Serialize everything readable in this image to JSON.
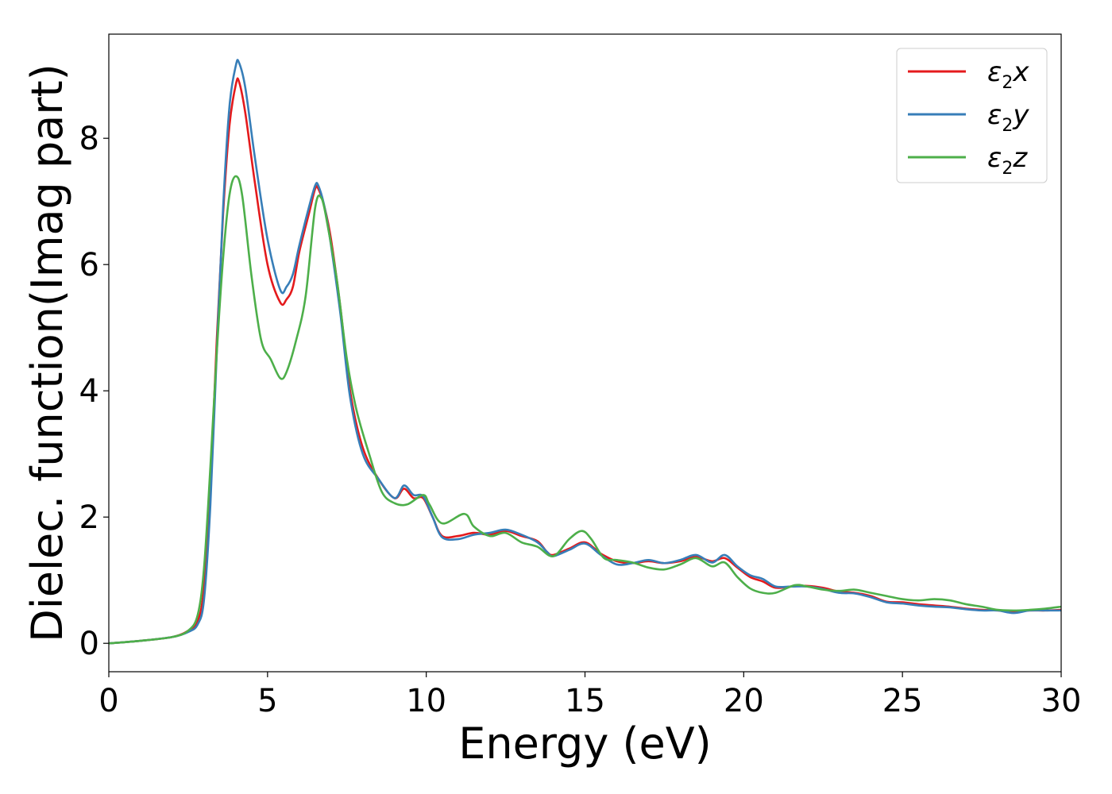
{
  "chart_data": {
    "type": "line",
    "xlabel": "Energy (eV)",
    "ylabel": "Dielec. function(Imag part)",
    "xlim": [
      0,
      30
    ],
    "ylim": [
      -0.45,
      9.65
    ],
    "xticks": [
      0,
      5,
      10,
      15,
      20,
      25,
      30
    ],
    "yticks": [
      0,
      2,
      4,
      6,
      8
    ],
    "grid": false,
    "legend_position": "top-right",
    "series": [
      {
        "name": "ε2x",
        "legend": {
          "base": "ε",
          "sub": "2",
          "var": "x"
        },
        "color": "#e41a1c",
        "points": [
          [
            0,
            0
          ],
          [
            1,
            0.04
          ],
          [
            2,
            0.1
          ],
          [
            2.5,
            0.2
          ],
          [
            2.8,
            0.35
          ],
          [
            3.0,
            0.9
          ],
          [
            3.2,
            2.5
          ],
          [
            3.4,
            4.8
          ],
          [
            3.6,
            6.8
          ],
          [
            3.8,
            8.2
          ],
          [
            4.0,
            8.85
          ],
          [
            4.1,
            8.9
          ],
          [
            4.3,
            8.4
          ],
          [
            4.6,
            7.3
          ],
          [
            5.0,
            6.0
          ],
          [
            5.4,
            5.4
          ],
          [
            5.6,
            5.45
          ],
          [
            5.8,
            5.65
          ],
          [
            6.0,
            6.2
          ],
          [
            6.3,
            6.8
          ],
          [
            6.5,
            7.2
          ],
          [
            6.6,
            7.2
          ],
          [
            6.8,
            6.9
          ],
          [
            7.0,
            6.4
          ],
          [
            7.3,
            5.3
          ],
          [
            7.6,
            4.0
          ],
          [
            8.0,
            3.1
          ],
          [
            8.5,
            2.6
          ],
          [
            9.0,
            2.3
          ],
          [
            9.3,
            2.45
          ],
          [
            9.6,
            2.3
          ],
          [
            9.9,
            2.3
          ],
          [
            10.2,
            2.0
          ],
          [
            10.5,
            1.7
          ],
          [
            11.0,
            1.7
          ],
          [
            11.5,
            1.75
          ],
          [
            12.0,
            1.72
          ],
          [
            12.5,
            1.78
          ],
          [
            13.0,
            1.7
          ],
          [
            13.5,
            1.62
          ],
          [
            13.8,
            1.45
          ],
          [
            14.0,
            1.4
          ],
          [
            14.5,
            1.5
          ],
          [
            15.0,
            1.6
          ],
          [
            15.5,
            1.42
          ],
          [
            16.0,
            1.3
          ],
          [
            16.5,
            1.27
          ],
          [
            17.0,
            1.3
          ],
          [
            17.5,
            1.27
          ],
          [
            18.0,
            1.3
          ],
          [
            18.5,
            1.37
          ],
          [
            19.0,
            1.3
          ],
          [
            19.4,
            1.35
          ],
          [
            19.8,
            1.2
          ],
          [
            20.2,
            1.05
          ],
          [
            20.6,
            0.98
          ],
          [
            21.0,
            0.88
          ],
          [
            21.5,
            0.9
          ],
          [
            22.0,
            0.91
          ],
          [
            22.5,
            0.88
          ],
          [
            23.0,
            0.82
          ],
          [
            23.5,
            0.8
          ],
          [
            24.0,
            0.75
          ],
          [
            24.5,
            0.66
          ],
          [
            25.0,
            0.65
          ],
          [
            25.5,
            0.62
          ],
          [
            26.0,
            0.6
          ],
          [
            26.5,
            0.58
          ],
          [
            27.0,
            0.55
          ],
          [
            27.5,
            0.53
          ],
          [
            28.0,
            0.52
          ],
          [
            28.5,
            0.5
          ],
          [
            29.0,
            0.52
          ],
          [
            29.5,
            0.52
          ],
          [
            30,
            0.53
          ]
        ]
      },
      {
        "name": "ε2y",
        "legend": {
          "base": "ε",
          "sub": "2",
          "var": "y"
        },
        "color": "#377eb8",
        "points": [
          [
            0,
            0
          ],
          [
            1,
            0.04
          ],
          [
            2,
            0.1
          ],
          [
            2.5,
            0.18
          ],
          [
            2.8,
            0.3
          ],
          [
            3.0,
            0.7
          ],
          [
            3.2,
            2.2
          ],
          [
            3.4,
            4.6
          ],
          [
            3.6,
            6.9
          ],
          [
            3.8,
            8.5
          ],
          [
            4.0,
            9.15
          ],
          [
            4.1,
            9.2
          ],
          [
            4.3,
            8.8
          ],
          [
            4.6,
            7.7
          ],
          [
            5.0,
            6.4
          ],
          [
            5.4,
            5.6
          ],
          [
            5.6,
            5.65
          ],
          [
            5.8,
            5.85
          ],
          [
            6.0,
            6.3
          ],
          [
            6.3,
            6.9
          ],
          [
            6.5,
            7.25
          ],
          [
            6.6,
            7.25
          ],
          [
            6.8,
            6.9
          ],
          [
            7.0,
            6.3
          ],
          [
            7.3,
            5.2
          ],
          [
            7.6,
            3.9
          ],
          [
            8.0,
            3.0
          ],
          [
            8.5,
            2.6
          ],
          [
            9.0,
            2.3
          ],
          [
            9.3,
            2.5
          ],
          [
            9.6,
            2.35
          ],
          [
            9.9,
            2.33
          ],
          [
            10.2,
            2.0
          ],
          [
            10.5,
            1.68
          ],
          [
            11.0,
            1.65
          ],
          [
            11.5,
            1.72
          ],
          [
            12.0,
            1.75
          ],
          [
            12.5,
            1.8
          ],
          [
            13.0,
            1.72
          ],
          [
            13.5,
            1.6
          ],
          [
            13.8,
            1.45
          ],
          [
            14.0,
            1.38
          ],
          [
            14.5,
            1.48
          ],
          [
            15.0,
            1.58
          ],
          [
            15.5,
            1.4
          ],
          [
            16.0,
            1.25
          ],
          [
            16.5,
            1.27
          ],
          [
            17.0,
            1.32
          ],
          [
            17.5,
            1.27
          ],
          [
            18.0,
            1.32
          ],
          [
            18.5,
            1.4
          ],
          [
            19.0,
            1.28
          ],
          [
            19.4,
            1.4
          ],
          [
            19.8,
            1.22
          ],
          [
            20.2,
            1.08
          ],
          [
            20.6,
            1.02
          ],
          [
            21.0,
            0.9
          ],
          [
            21.5,
            0.9
          ],
          [
            22.0,
            0.9
          ],
          [
            22.5,
            0.86
          ],
          [
            23.0,
            0.8
          ],
          [
            23.5,
            0.79
          ],
          [
            24.0,
            0.73
          ],
          [
            24.5,
            0.65
          ],
          [
            25.0,
            0.63
          ],
          [
            25.5,
            0.6
          ],
          [
            26.0,
            0.58
          ],
          [
            26.5,
            0.57
          ],
          [
            27.0,
            0.54
          ],
          [
            27.5,
            0.52
          ],
          [
            28.0,
            0.52
          ],
          [
            28.5,
            0.48
          ],
          [
            29.0,
            0.52
          ],
          [
            29.5,
            0.52
          ],
          [
            30,
            0.52
          ]
        ]
      },
      {
        "name": "ε2z",
        "legend": {
          "base": "ε",
          "sub": "2",
          "var": "z"
        },
        "color": "#4daf4a",
        "points": [
          [
            0,
            0
          ],
          [
            1,
            0.04
          ],
          [
            2,
            0.1
          ],
          [
            2.5,
            0.2
          ],
          [
            2.8,
            0.45
          ],
          [
            3.0,
            1.2
          ],
          [
            3.2,
            2.8
          ],
          [
            3.4,
            4.6
          ],
          [
            3.6,
            6.1
          ],
          [
            3.8,
            7.1
          ],
          [
            4.0,
            7.4
          ],
          [
            4.2,
            7.1
          ],
          [
            4.5,
            5.8
          ],
          [
            4.8,
            4.8
          ],
          [
            5.1,
            4.5
          ],
          [
            5.4,
            4.2
          ],
          [
            5.6,
            4.3
          ],
          [
            5.9,
            4.8
          ],
          [
            6.2,
            5.5
          ],
          [
            6.5,
            6.9
          ],
          [
            6.7,
            7.05
          ],
          [
            6.9,
            6.6
          ],
          [
            7.2,
            5.7
          ],
          [
            7.5,
            4.5
          ],
          [
            7.8,
            3.7
          ],
          [
            8.2,
            3.0
          ],
          [
            8.6,
            2.4
          ],
          [
            9.0,
            2.22
          ],
          [
            9.4,
            2.2
          ],
          [
            9.9,
            2.35
          ],
          [
            10.1,
            2.2
          ],
          [
            10.5,
            1.9
          ],
          [
            11.2,
            2.05
          ],
          [
            11.5,
            1.85
          ],
          [
            12.0,
            1.7
          ],
          [
            12.5,
            1.75
          ],
          [
            13.0,
            1.6
          ],
          [
            13.5,
            1.53
          ],
          [
            14.0,
            1.38
          ],
          [
            14.5,
            1.65
          ],
          [
            14.9,
            1.78
          ],
          [
            15.2,
            1.65
          ],
          [
            15.6,
            1.35
          ],
          [
            16.0,
            1.32
          ],
          [
            16.5,
            1.28
          ],
          [
            17.0,
            1.2
          ],
          [
            17.5,
            1.17
          ],
          [
            18.0,
            1.25
          ],
          [
            18.5,
            1.35
          ],
          [
            19.0,
            1.22
          ],
          [
            19.4,
            1.28
          ],
          [
            19.8,
            1.05
          ],
          [
            20.2,
            0.87
          ],
          [
            20.6,
            0.8
          ],
          [
            21.0,
            0.8
          ],
          [
            21.6,
            0.92
          ],
          [
            22.0,
            0.9
          ],
          [
            22.5,
            0.85
          ],
          [
            23.0,
            0.83
          ],
          [
            23.5,
            0.85
          ],
          [
            24.0,
            0.8
          ],
          [
            24.5,
            0.75
          ],
          [
            25.0,
            0.7
          ],
          [
            25.5,
            0.68
          ],
          [
            26.0,
            0.7
          ],
          [
            26.5,
            0.68
          ],
          [
            27.0,
            0.62
          ],
          [
            27.5,
            0.58
          ],
          [
            28.0,
            0.53
          ],
          [
            28.5,
            0.52
          ],
          [
            29.0,
            0.53
          ],
          [
            29.5,
            0.55
          ],
          [
            30,
            0.58
          ]
        ]
      }
    ]
  }
}
